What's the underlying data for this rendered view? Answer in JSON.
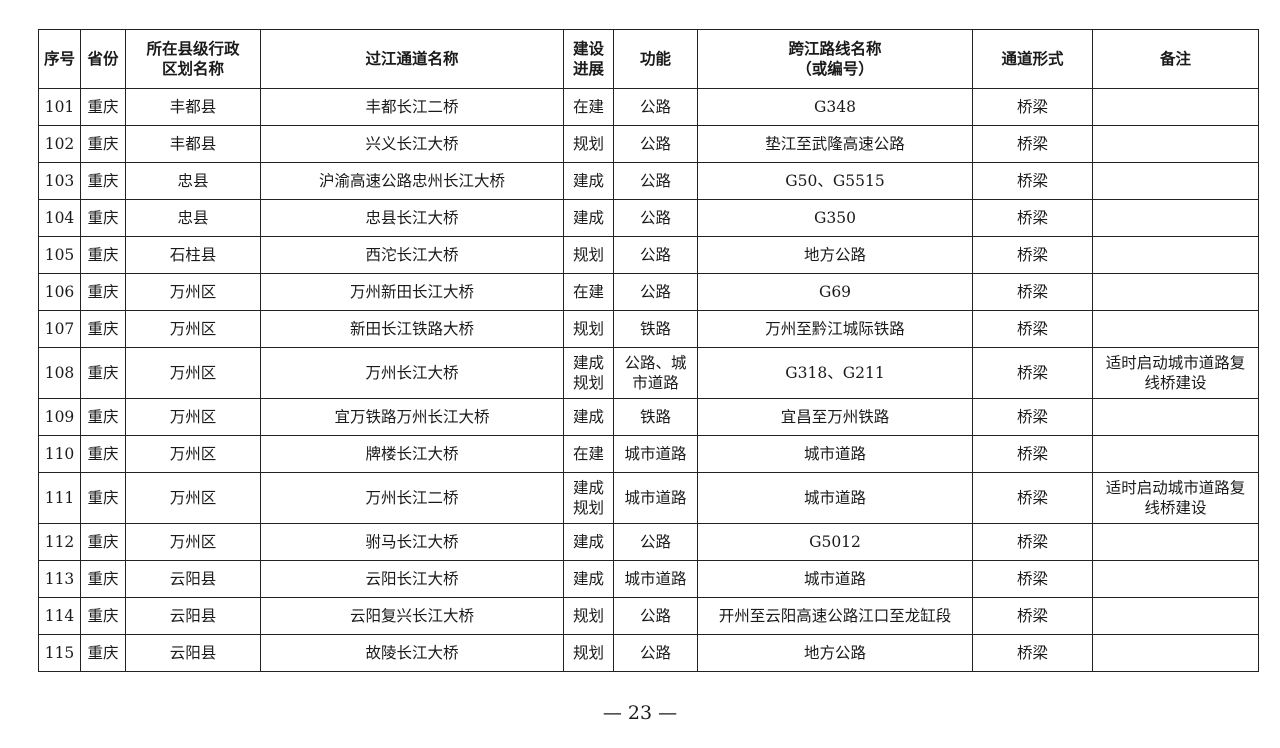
{
  "headers": [
    "序号",
    "省份",
    "所在县级行政\n区划名称",
    "过江通道名称",
    "建设\n进展",
    "功能",
    "跨江路线名称\n（或编号）",
    "通道形式",
    "备注"
  ],
  "rows": [
    [
      "101",
      "重庆",
      "丰都县",
      "丰都长江二桥",
      "在建",
      "公路",
      "G348",
      "桥梁",
      ""
    ],
    [
      "102",
      "重庆",
      "丰都县",
      "兴义长江大桥",
      "规划",
      "公路",
      "垫江至武隆高速公路",
      "桥梁",
      ""
    ],
    [
      "103",
      "重庆",
      "忠县",
      "沪渝高速公路忠州长江大桥",
      "建成",
      "公路",
      "G50、G5515",
      "桥梁",
      ""
    ],
    [
      "104",
      "重庆",
      "忠县",
      "忠县长江大桥",
      "建成",
      "公路",
      "G350",
      "桥梁",
      ""
    ],
    [
      "105",
      "重庆",
      "石柱县",
      "西沱长江大桥",
      "规划",
      "公路",
      "地方公路",
      "桥梁",
      ""
    ],
    [
      "106",
      "重庆",
      "万州区",
      "万州新田长江大桥",
      "在建",
      "公路",
      "G69",
      "桥梁",
      ""
    ],
    [
      "107",
      "重庆",
      "万州区",
      "新田长江铁路大桥",
      "规划",
      "铁路",
      "万州至黔江城际铁路",
      "桥梁",
      ""
    ],
    [
      "108",
      "重庆",
      "万州区",
      "万州长江大桥",
      "建成\n规划",
      "公路、城\n市道路",
      "G318、G211",
      "桥梁",
      "适时启动城市道路复\n线桥建设"
    ],
    [
      "109",
      "重庆",
      "万州区",
      "宜万铁路万州长江大桥",
      "建成",
      "铁路",
      "宜昌至万州铁路",
      "桥梁",
      ""
    ],
    [
      "110",
      "重庆",
      "万州区",
      "牌楼长江大桥",
      "在建",
      "城市道路",
      "城市道路",
      "桥梁",
      ""
    ],
    [
      "111",
      "重庆",
      "万州区",
      "万州长江二桥",
      "建成\n规划",
      "城市道路",
      "城市道路",
      "桥梁",
      "适时启动城市道路复\n线桥建设"
    ],
    [
      "112",
      "重庆",
      "万州区",
      "驸马长江大桥",
      "建成",
      "公路",
      "G5012",
      "桥梁",
      ""
    ],
    [
      "113",
      "重庆",
      "云阳县",
      "云阳长江大桥",
      "建成",
      "城市道路",
      "城市道路",
      "桥梁",
      ""
    ],
    [
      "114",
      "重庆",
      "云阳县",
      "云阳复兴长江大桥",
      "规划",
      "公路",
      "开州至云阳高速公路江口至龙缸段",
      "桥梁",
      ""
    ],
    [
      "115",
      "重庆",
      "云阳县",
      "故陵长江大桥",
      "规划",
      "公路",
      "地方公路",
      "桥梁",
      ""
    ]
  ],
  "footer": "— 23 —"
}
